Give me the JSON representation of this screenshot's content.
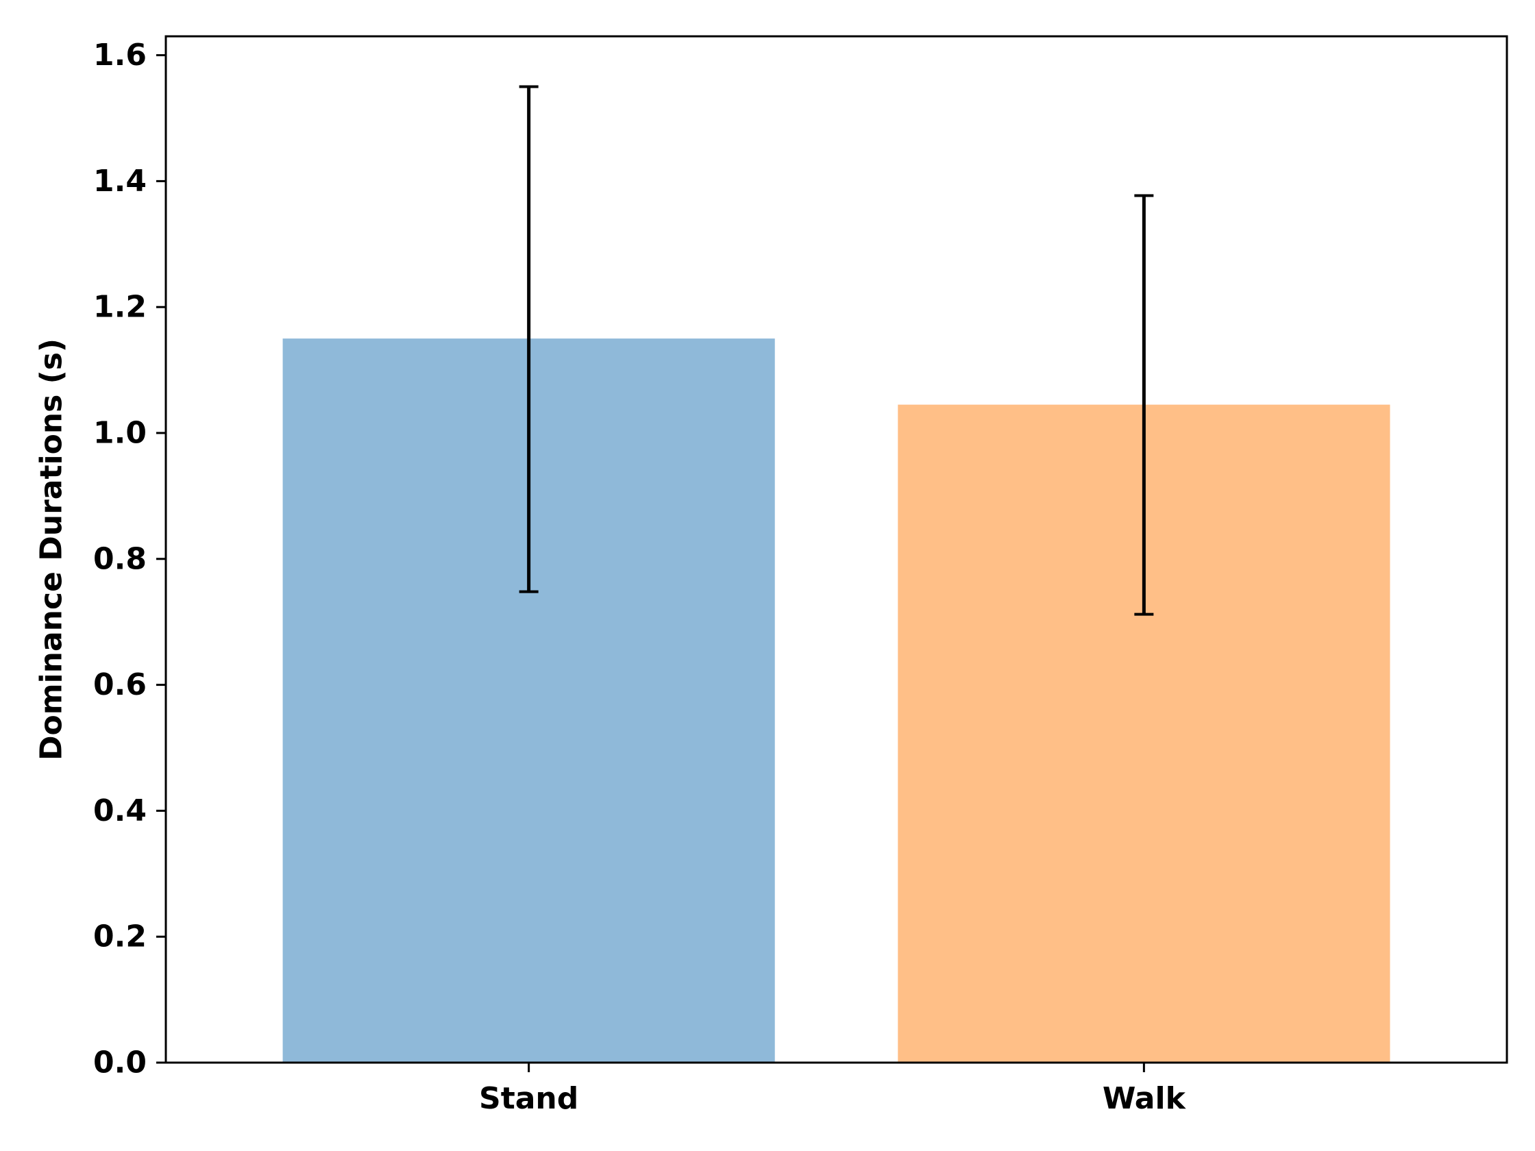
{
  "chart_data": {
    "type": "bar",
    "categories": [
      "Stand",
      "Walk"
    ],
    "values": [
      1.15,
      1.045
    ],
    "error_low": [
      0.748,
      0.712
    ],
    "error_high": [
      1.55,
      1.377
    ],
    "bar_colors": [
      "#8fb9d9",
      "#ffbf87"
    ],
    "xlabel": "",
    "ylabel": "Dominance Durations (s)",
    "ylim": [
      0,
      1.63
    ],
    "yticks": [
      "0.0",
      "0.2",
      "0.4",
      "0.6",
      "0.8",
      "1.0",
      "1.2",
      "1.4",
      "1.6"
    ],
    "grid": false
  }
}
